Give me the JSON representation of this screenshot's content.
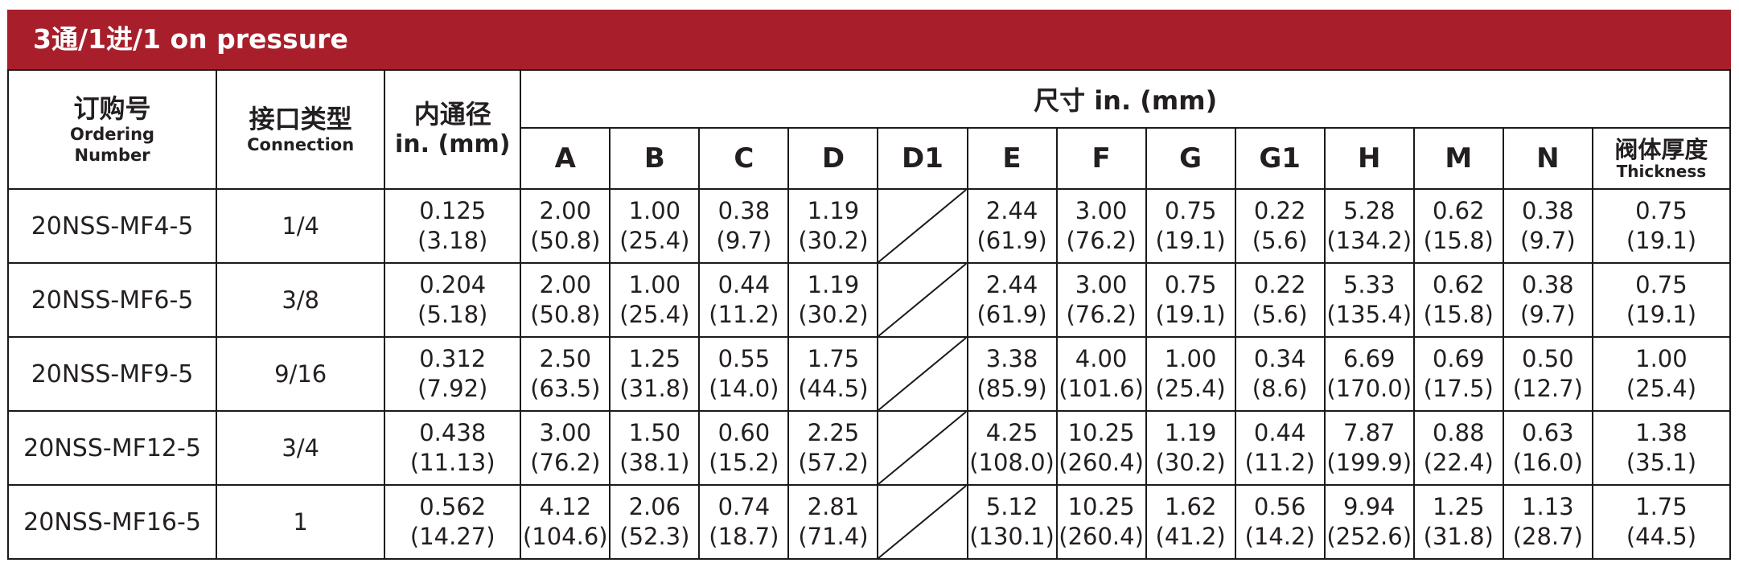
{
  "title": "3通/1进/1 on pressure",
  "headers": {
    "ordering_zh": "订购号",
    "ordering_en_1": "Ordering",
    "ordering_en_2": "Number",
    "connection_zh": "接口类型",
    "connection_en": "Connection",
    "bore_zh": "内通径",
    "bore_unit": "in. (mm)",
    "dims_title": "尺寸 in. (mm)",
    "dim_cols": [
      "A",
      "B",
      "C",
      "D",
      "D1",
      "E",
      "F",
      "G",
      "G1",
      "H",
      "M",
      "N"
    ],
    "thickness_zh": "阀体厚度",
    "thickness_en": "Thickness"
  },
  "rows": [
    {
      "order": "20NSS-MF4-5",
      "connection": "1/4",
      "bore": [
        "0.125",
        "(3.18)"
      ],
      "A": [
        "2.00",
        "(50.8)"
      ],
      "B": [
        "1.00",
        "(25.4)"
      ],
      "C": [
        "0.38",
        "(9.7)"
      ],
      "D": [
        "1.19",
        "(30.2)"
      ],
      "E": [
        "2.44",
        "(61.9)"
      ],
      "F": [
        "3.00",
        "(76.2)"
      ],
      "G": [
        "0.75",
        "(19.1)"
      ],
      "G1": [
        "0.22",
        "(5.6)"
      ],
      "H": [
        "5.28",
        "(134.2)"
      ],
      "M": [
        "0.62",
        "(15.8)"
      ],
      "N": [
        "0.38",
        "(9.7)"
      ],
      "T": [
        "0.75",
        "(19.1)"
      ]
    },
    {
      "order": "20NSS-MF6-5",
      "connection": "3/8",
      "bore": [
        "0.204",
        "(5.18)"
      ],
      "A": [
        "2.00",
        "(50.8)"
      ],
      "B": [
        "1.00",
        "(25.4)"
      ],
      "C": [
        "0.44",
        "(11.2)"
      ],
      "D": [
        "1.19",
        "(30.2)"
      ],
      "E": [
        "2.44",
        "(61.9)"
      ],
      "F": [
        "3.00",
        "(76.2)"
      ],
      "G": [
        "0.75",
        "(19.1)"
      ],
      "G1": [
        "0.22",
        "(5.6)"
      ],
      "H": [
        "5.33",
        "(135.4)"
      ],
      "M": [
        "0.62",
        "(15.8)"
      ],
      "N": [
        "0.38",
        "(9.7)"
      ],
      "T": [
        "0.75",
        "(19.1)"
      ]
    },
    {
      "order": "20NSS-MF9-5",
      "connection": "9/16",
      "bore": [
        "0.312",
        "(7.92)"
      ],
      "A": [
        "2.50",
        "(63.5)"
      ],
      "B": [
        "1.25",
        "(31.8)"
      ],
      "C": [
        "0.55",
        "(14.0)"
      ],
      "D": [
        "1.75",
        "(44.5)"
      ],
      "E": [
        "3.38",
        "(85.9)"
      ],
      "F": [
        "4.00",
        "(101.6)"
      ],
      "G": [
        "1.00",
        "(25.4)"
      ],
      "G1": [
        "0.34",
        "(8.6)"
      ],
      "H": [
        "6.69",
        "(170.0)"
      ],
      "M": [
        "0.69",
        "(17.5)"
      ],
      "N": [
        "0.50",
        "(12.7)"
      ],
      "T": [
        "1.00",
        "(25.4)"
      ]
    },
    {
      "order": "20NSS-MF12-5",
      "connection": "3/4",
      "bore": [
        "0.438",
        "(11.13)"
      ],
      "A": [
        "3.00",
        "(76.2)"
      ],
      "B": [
        "1.50",
        "(38.1)"
      ],
      "C": [
        "0.60",
        "(15.2)"
      ],
      "D": [
        "2.25",
        "(57.2)"
      ],
      "E": [
        "4.25",
        "(108.0)"
      ],
      "F": [
        "10.25",
        "(260.4)"
      ],
      "G": [
        "1.19",
        "(30.2)"
      ],
      "G1": [
        "0.44",
        "(11.2)"
      ],
      "H": [
        "7.87",
        "(199.9)"
      ],
      "M": [
        "0.88",
        "(22.4)"
      ],
      "N": [
        "0.63",
        "(16.0)"
      ],
      "T": [
        "1.38",
        "(35.1)"
      ]
    },
    {
      "order": "20NSS-MF16-5",
      "connection": "1",
      "bore": [
        "0.562",
        "(14.27)"
      ],
      "A": [
        "4.12",
        "(104.6)"
      ],
      "B": [
        "2.06",
        "(52.3)"
      ],
      "C": [
        "0.74",
        "(18.7)"
      ],
      "D": [
        "2.81",
        "(71.4)"
      ],
      "E": [
        "5.12",
        "(130.1)"
      ],
      "F": [
        "10.25",
        "(260.4)"
      ],
      "G": [
        "1.62",
        "(41.2)"
      ],
      "G1": [
        "0.56",
        "(14.2)"
      ],
      "H": [
        "9.94",
        "(252.6)"
      ],
      "M": [
        "1.25",
        "(31.8)"
      ],
      "N": [
        "1.13",
        "(28.7)"
      ],
      "T": [
        "1.75",
        "(44.5)"
      ]
    }
  ],
  "colors": {
    "title_bg": "#a81f2b",
    "title_fg": "#ffffff",
    "border": "#1a1a1a",
    "text": "#231f20"
  }
}
